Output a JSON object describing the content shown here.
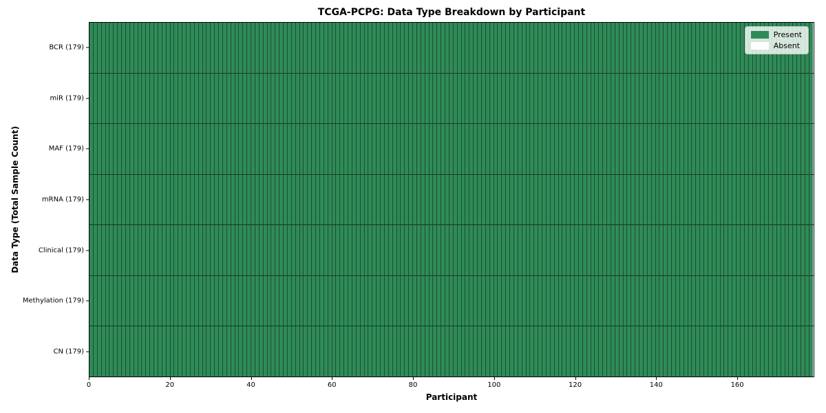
{
  "chart_data": {
    "type": "heatmap",
    "title": "TCGA-PCPG: Data Type Breakdown by Participant",
    "xlabel": "Participant",
    "ylabel": "Data Type (Total Sample Count)",
    "n_participants": 179,
    "x_range": [
      0,
      179
    ],
    "x_ticks": [
      0,
      20,
      40,
      60,
      80,
      100,
      120,
      140,
      160
    ],
    "grid": false,
    "rows": [
      {
        "data_type": "BCR",
        "label": "BCR (179)",
        "total_samples": 179,
        "present": 179,
        "absent": 0
      },
      {
        "data_type": "miR",
        "label": "miR (179)",
        "total_samples": 179,
        "present": 179,
        "absent": 0
      },
      {
        "data_type": "MAF",
        "label": "MAF (179)",
        "total_samples": 179,
        "present": 179,
        "absent": 0
      },
      {
        "data_type": "mRNA",
        "label": "mRNA (179)",
        "total_samples": 179,
        "present": 179,
        "absent": 0
      },
      {
        "data_type": "Clinical",
        "label": "Clinical (179)",
        "total_samples": 179,
        "present": 179,
        "absent": 0
      },
      {
        "data_type": "Methylation",
        "label": "Methylation (179)",
        "total_samples": 179,
        "present": 179,
        "absent": 0
      },
      {
        "data_type": "CN",
        "label": "CN (179)",
        "total_samples": 179,
        "present": 179,
        "absent": 0
      }
    ],
    "legend": {
      "position": "upper-right",
      "items": [
        {
          "key": "present",
          "label": "Present",
          "color": "#2e8b57"
        },
        {
          "key": "absent",
          "label": "Absent",
          "color": "#ffffff"
        }
      ]
    },
    "colors": {
      "present": "#2e8b57",
      "absent": "#ffffff",
      "cell_edge": "#1e4d33",
      "row_divider": "#163a26",
      "spine": "#000000"
    }
  }
}
